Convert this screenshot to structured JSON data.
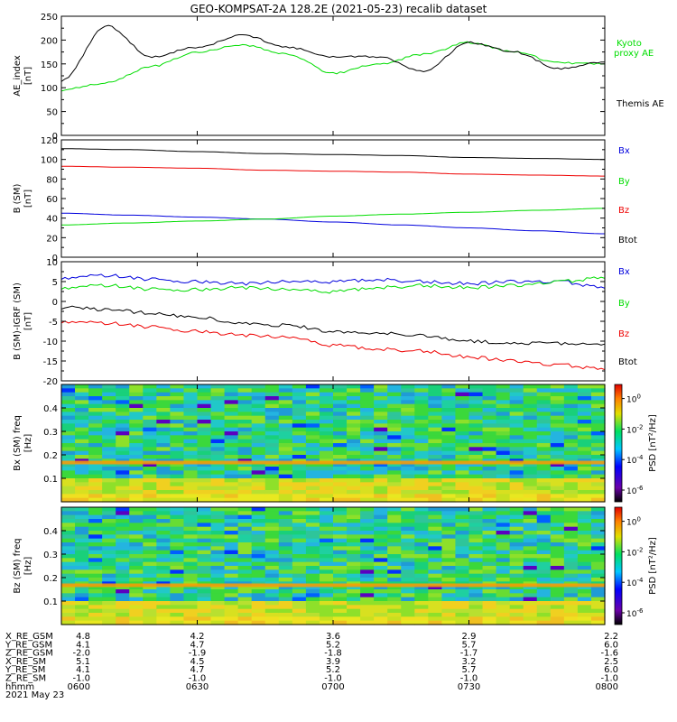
{
  "title": "GEO-KOMPSAT-2A 128.2E (2021-05-23) recalib dataset",
  "colors": {
    "black": "#000000",
    "green": "#00dd00",
    "red": "#ee0000",
    "blue": "#0000dd"
  },
  "chart_data": [
    {
      "type": "line",
      "ylabel": "AE_index [nT]",
      "ylim": [
        0,
        250
      ],
      "yticks": [
        "0",
        "50",
        "100",
        "150",
        "200",
        "250"
      ],
      "x": [
        "0600",
        "0610",
        "0620",
        "0630",
        "0640",
        "0650",
        "0700",
        "0710",
        "0720",
        "0730",
        "0740",
        "0750",
        "0800"
      ],
      "series": [
        {
          "name": "Kyoto proxy AE",
          "color": "#00dd00",
          "values": [
            95,
            110,
            145,
            175,
            190,
            170,
            130,
            150,
            170,
            195,
            175,
            152,
            150
          ]
        },
        {
          "name": "Themis AE",
          "color": "#000000",
          "values": [
            115,
            230,
            165,
            185,
            210,
            185,
            165,
            165,
            135,
            195,
            175,
            140,
            155
          ]
        }
      ]
    },
    {
      "type": "line",
      "ylabel": "B (SM) [nT]",
      "ylim": [
        0,
        120
      ],
      "yticks": [
        "0",
        "20",
        "40",
        "60",
        "80",
        "100",
        "120"
      ],
      "x": [
        "0600",
        "0615",
        "0630",
        "0645",
        "0700",
        "0715",
        "0730",
        "0745",
        "0800"
      ],
      "series": [
        {
          "name": "Bx",
          "color": "#0000dd",
          "values": [
            45,
            43,
            41,
            39,
            36,
            33,
            30,
            27,
            24
          ]
        },
        {
          "name": "By",
          "color": "#00dd00",
          "values": [
            33,
            35,
            37,
            39,
            42,
            44,
            46,
            48,
            50
          ]
        },
        {
          "name": "Bz",
          "color": "#ee0000",
          "values": [
            93,
            92,
            91,
            89,
            88,
            87,
            85,
            84,
            83
          ]
        },
        {
          "name": "Btot",
          "color": "#000000",
          "values": [
            111,
            110,
            108,
            106,
            105,
            104,
            102,
            101,
            100
          ]
        }
      ]
    },
    {
      "type": "line",
      "ylabel": "B (SM)-IGRF (SM) [nT]",
      "ylim": [
        -20,
        10
      ],
      "yticks": [
        "-20",
        "-15",
        "-10",
        "-5",
        "0",
        "5",
        "10"
      ],
      "x": [
        "0600",
        "0610",
        "0620",
        "0630",
        "0640",
        "0650",
        "0700",
        "0710",
        "0720",
        "0730",
        "0740",
        "0750",
        "0800"
      ],
      "series": [
        {
          "name": "Bx",
          "color": "#0000dd",
          "values": [
            6,
            6.5,
            5.5,
            5,
            4.5,
            5,
            5,
            5.5,
            5,
            4.5,
            5,
            5,
            3.5
          ]
        },
        {
          "name": "By",
          "color": "#00dd00",
          "values": [
            3.5,
            4,
            3,
            3,
            3.5,
            3,
            2.5,
            3.5,
            4,
            3.5,
            4,
            5,
            6
          ]
        },
        {
          "name": "Bz",
          "color": "#ee0000",
          "values": [
            -5,
            -5.5,
            -6.5,
            -7.5,
            -8.5,
            -9,
            -11,
            -12,
            -12.5,
            -14,
            -15,
            -16,
            -17
          ]
        },
        {
          "name": "Btot",
          "color": "#000000",
          "values": [
            -1.5,
            -2,
            -3,
            -4,
            -5.5,
            -6,
            -7.5,
            -8,
            -8.5,
            -10,
            -10.5,
            -10.5,
            -11
          ]
        }
      ]
    },
    {
      "type": "heatmap",
      "ylabel": "Bx (SM) freq [Hz]",
      "ylim": [
        0,
        0.5
      ],
      "yticks": [
        "0.1",
        "0.2",
        "0.3",
        "0.4"
      ],
      "colorbar_label": "PSD [nT^2/Hz]",
      "colorbar_ticks": [
        "10^0",
        "10^-2",
        "10^-4",
        "10^-6"
      ]
    },
    {
      "type": "heatmap",
      "ylabel": "Bz (SM) freq [Hz]",
      "ylim": [
        0,
        0.5
      ],
      "yticks": [
        "0.1",
        "0.2",
        "0.3",
        "0.4"
      ],
      "colorbar_label": "PSD [nT^2/Hz]",
      "colorbar_ticks": [
        "10^0",
        "10^-2",
        "10^-4",
        "10^-6"
      ]
    }
  ],
  "orbit_table": {
    "labels": [
      "X_RE_GSM",
      "Y_RE_GSM",
      "Z_RE_GSM",
      "X_RE_SM",
      "Y_RE_SM",
      "Z_RE_SM",
      "hhmm"
    ],
    "columns": [
      [
        "4.8",
        "4.1",
        "-2.0",
        "5.1",
        "4.1",
        "-1.0",
        "0600"
      ],
      [
        "4.2",
        "4.7",
        "-1.9",
        "4.5",
        "4.7",
        "-1.0",
        "0630"
      ],
      [
        "3.6",
        "5.2",
        "-1.8",
        "3.9",
        "5.2",
        "-1.0",
        "0700"
      ],
      [
        "2.9",
        "5.7",
        "-1.7",
        "3.2",
        "5.7",
        "-1.0",
        "0730"
      ],
      [
        "2.2",
        "6.0",
        "-1.6",
        "2.5",
        "6.0",
        "-1.0",
        "0800"
      ]
    ],
    "date": "2021 May 23"
  }
}
